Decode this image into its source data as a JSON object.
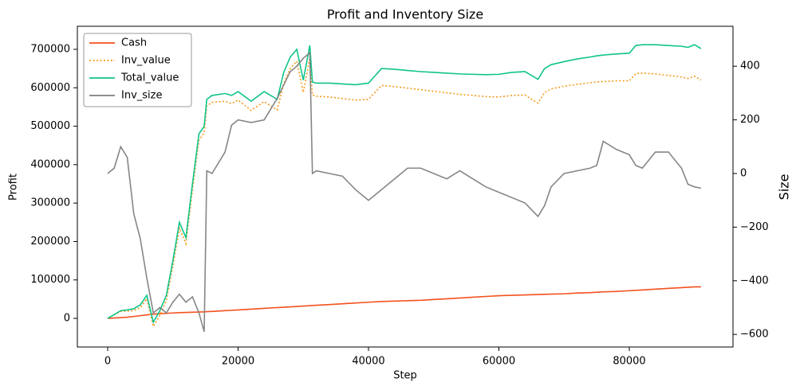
{
  "chart_data": {
    "type": "line",
    "title": "Profit and Inventory Size",
    "x_label": "Step",
    "y_label": "Profit",
    "y2_label": "Size",
    "x": [
      0,
      1000,
      2000,
      3000,
      4000,
      5000,
      6000,
      7000,
      8000,
      9000,
      10000,
      11000,
      12000,
      13000,
      14000,
      14800,
      15200,
      16000,
      18000,
      19000,
      20000,
      22000,
      24000,
      26000,
      27000,
      28000,
      29000,
      30000,
      31000,
      31400,
      32000,
      34000,
      36000,
      38000,
      40000,
      42000,
      44000,
      46000,
      48000,
      50000,
      52000,
      54000,
      56000,
      58000,
      60000,
      62000,
      64000,
      66000,
      67000,
      68000,
      70000,
      72000,
      74000,
      75000,
      76000,
      78000,
      80000,
      81000,
      82000,
      84000,
      86000,
      88000,
      89000,
      90000,
      91000
    ],
    "series": [
      {
        "name": "Cash",
        "color": "#f4511e",
        "dash": "solid",
        "values": [
          0,
          1000,
          2000,
          3000,
          5000,
          7000,
          9000,
          11000,
          12000,
          13000,
          14000,
          15000,
          15500,
          16000,
          16500,
          17000,
          17500,
          18000,
          20000,
          21000,
          22000,
          24000,
          26000,
          28000,
          29000,
          30000,
          31000,
          32000,
          33000,
          33500,
          34000,
          36000,
          38000,
          40000,
          42000,
          44000,
          45000,
          46000,
          47000,
          49000,
          51000,
          53000,
          55000,
          57000,
          59000,
          60000,
          61000,
          62000,
          62500,
          63000,
          64000,
          66000,
          67000,
          68000,
          69000,
          70000,
          72000,
          73000,
          74000,
          76000,
          78000,
          80000,
          81000,
          82000,
          82000
        ]
      },
      {
        "name": "Inv_value",
        "color": "#f59a1b",
        "dash": "dotted",
        "values": [
          0,
          9000,
          18000,
          19000,
          20000,
          28000,
          51000,
          -21000,
          8000,
          47000,
          136000,
          235000,
          194500,
          334000,
          463500,
          483000,
          552500,
          562000,
          565000,
          559000,
          568000,
          541000,
          564000,
          542000,
          611000,
          650000,
          669000,
          588000,
          677000,
          581500,
          578000,
          576000,
          572000,
          568000,
          570000,
          606000,
          603000,
          599000,
          595000,
          591000,
          587000,
          583000,
          580000,
          577000,
          576000,
          580000,
          581000,
          560000,
          587500,
          597000,
          604000,
          609000,
          613000,
          615000,
          616000,
          618000,
          618000,
          637000,
          638000,
          636000,
          632000,
          628000,
          624000,
          630000,
          620000
        ]
      },
      {
        "name": "Total_value",
        "color": "#10c48a",
        "dash": "solid",
        "values": [
          0,
          10000,
          20000,
          22000,
          25000,
          35000,
          60000,
          -10000,
          20000,
          60000,
          150000,
          250000,
          210000,
          350000,
          480000,
          500000,
          570000,
          580000,
          585000,
          580000,
          590000,
          565000,
          590000,
          570000,
          640000,
          680000,
          700000,
          620000,
          710000,
          615000,
          612000,
          612000,
          610000,
          608000,
          612000,
          650000,
          648000,
          645000,
          642000,
          640000,
          638000,
          636000,
          635000,
          634000,
          635000,
          640000,
          642000,
          622000,
          650000,
          660000,
          668000,
          675000,
          680000,
          683000,
          685000,
          688000,
          690000,
          710000,
          712000,
          712000,
          710000,
          708000,
          705000,
          712000,
          702000
        ]
      },
      {
        "name": "Inv_size",
        "color": "#7f7f7f",
        "dash": "solid",
        "axis": "y2",
        "values": [
          0,
          20,
          100,
          60,
          -150,
          -243,
          -390,
          -520,
          -500,
          -520,
          -480,
          -450,
          -480,
          -460,
          -520,
          -590,
          10,
          0,
          80,
          180,
          200,
          190,
          200,
          280,
          330,
          380,
          400,
          430,
          450,
          0,
          10,
          0,
          -10,
          -60,
          -100,
          -60,
          -20,
          20,
          20,
          0,
          -20,
          10,
          -20,
          -50,
          -70,
          -90,
          -110,
          -160,
          -120,
          -50,
          0,
          10,
          20,
          30,
          120,
          90,
          70,
          30,
          20,
          80,
          80,
          20,
          -40,
          -50,
          -55
        ]
      }
    ],
    "xlim": [
      -4650,
      95900
    ],
    "xticks": [
      0,
      20000,
      40000,
      60000,
      80000
    ],
    "ylim": [
      -74500,
      760000
    ],
    "yticks": [
      0,
      100000,
      200000,
      300000,
      400000,
      500000,
      600000,
      700000
    ],
    "y2lim": [
      -647,
      549
    ],
    "y2ticks": [
      {
        "value": -600,
        "label": "−600"
      },
      {
        "value": -400,
        "label": "−400"
      },
      {
        "value": -200,
        "label": "−200"
      },
      0,
      200,
      400
    ],
    "legend": "upper left"
  }
}
